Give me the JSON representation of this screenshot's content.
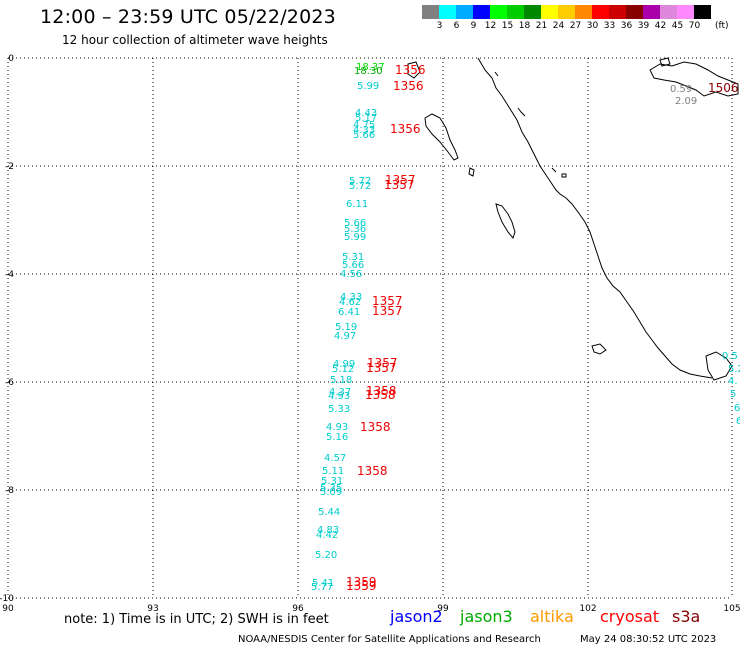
{
  "header": {
    "title": "12:00 – 23:59 UTC 05/22/2023",
    "subtitle": "12 hour collection of altimeter wave heights"
  },
  "color_scale": {
    "colors": [
      "#808080",
      "#00ffff",
      "#00aaff",
      "#0000ff",
      "#00ff00",
      "#00cc00",
      "#008800",
      "#ffff00",
      "#ffcc00",
      "#ff8800",
      "#ff0000",
      "#cc0000",
      "#880000",
      "#aa00aa",
      "#dd88dd",
      "#ff88ff",
      "#000000"
    ],
    "labels": [
      "3",
      "6",
      "9",
      "12",
      "15",
      "18",
      "21",
      "24",
      "27",
      "30",
      "33",
      "36",
      "39",
      "42",
      "45",
      "70"
    ],
    "unit": "(ft)"
  },
  "axes": {
    "lat_labels": [
      "0",
      "-2",
      "-4",
      "-6",
      "-8",
      "-10"
    ],
    "lon_labels": [
      "90",
      "93",
      "96",
      "99",
      "102",
      "105"
    ]
  },
  "observations": {
    "heights": [
      {
        "text": "18.37",
        "color": "#00dd00"
      },
      {
        "text": "18.30",
        "color": "#00aa00"
      },
      {
        "text": "5.99",
        "color": "#00cccc"
      },
      {
        "text": "4.43",
        "color": "#00cccc"
      },
      {
        "text": "5.17",
        "color": "#00cccc"
      },
      {
        "text": "4.75",
        "color": "#00cccc"
      },
      {
        "text": "4.33",
        "color": "#00cccc"
      },
      {
        "text": "5.66",
        "color": "#00cccc"
      },
      {
        "text": "5.72",
        "color": "#00cccc"
      },
      {
        "text": "5.72",
        "color": "#00cccc"
      },
      {
        "text": "6.11",
        "color": "#00cccc"
      },
      {
        "text": "5.66",
        "color": "#00cccc"
      },
      {
        "text": "5.36",
        "color": "#00cccc"
      },
      {
        "text": "5.99",
        "color": "#00cccc"
      },
      {
        "text": "5.31",
        "color": "#00cccc"
      },
      {
        "text": "5.66",
        "color": "#00cccc"
      },
      {
        "text": "4.56",
        "color": "#00cccc"
      },
      {
        "text": "4.33",
        "color": "#00cccc"
      },
      {
        "text": "4.62",
        "color": "#00cccc"
      },
      {
        "text": "6.41",
        "color": "#00cccc"
      },
      {
        "text": "5.19",
        "color": "#00cccc"
      },
      {
        "text": "4.97",
        "color": "#00cccc"
      },
      {
        "text": "4.99",
        "color": "#00cccc"
      },
      {
        "text": "5.12",
        "color": "#00cccc"
      },
      {
        "text": "5.18",
        "color": "#00cccc"
      },
      {
        "text": "4.37",
        "color": "#00cccc"
      },
      {
        "text": "4.93",
        "color": "#00cccc"
      },
      {
        "text": "5.33",
        "color": "#00cccc"
      },
      {
        "text": "4.93",
        "color": "#00cccc"
      },
      {
        "text": "5.16",
        "color": "#00cccc"
      },
      {
        "text": "4.57",
        "color": "#00cccc"
      },
      {
        "text": "5.11",
        "color": "#00cccc"
      },
      {
        "text": "5.31",
        "color": "#00cccc"
      },
      {
        "text": "5.35",
        "color": "#00cccc"
      },
      {
        "text": "5.09",
        "color": "#00cccc"
      },
      {
        "text": "5.44",
        "color": "#00cccc"
      },
      {
        "text": "4.83",
        "color": "#00cccc"
      },
      {
        "text": "4.42",
        "color": "#00cccc"
      },
      {
        "text": "5.20",
        "color": "#00cccc"
      },
      {
        "text": "5.41",
        "color": "#00cccc"
      },
      {
        "text": "5.77",
        "color": "#00cccc"
      },
      {
        "text": "0.59",
        "color": "#808080"
      },
      {
        "text": "2.09",
        "color": "#808080"
      },
      {
        "text": "0.5",
        "color": "#00cccc"
      },
      {
        "text": "5.2",
        "color": "#00cccc"
      },
      {
        "text": "4.",
        "color": "#00cccc"
      },
      {
        "text": "5",
        "color": "#00cccc"
      },
      {
        "text": "6",
        "color": "#00cccc"
      },
      {
        "text": "6",
        "color": "#00cccc"
      }
    ],
    "times": [
      {
        "text": "1356",
        "color": "#ee0000"
      },
      {
        "text": "1356",
        "color": "#ee0000"
      },
      {
        "text": "1356",
        "color": "#ee0000"
      },
      {
        "text": "1357",
        "color": "#ee0000"
      },
      {
        "text": "1357",
        "color": "#ee0000"
      },
      {
        "text": "1357",
        "color": "#ee0000"
      },
      {
        "text": "1357",
        "color": "#ee0000"
      },
      {
        "text": "1357",
        "color": "#ee0000"
      },
      {
        "text": "1357",
        "color": "#ee0000"
      },
      {
        "text": "1358",
        "color": "#ee0000"
      },
      {
        "text": "1358",
        "color": "#ee0000"
      },
      {
        "text": "1358",
        "color": "#ee0000"
      },
      {
        "text": "1358",
        "color": "#ee0000"
      },
      {
        "text": "1359",
        "color": "#ee0000"
      },
      {
        "text": "1359",
        "color": "#ee0000"
      },
      {
        "text": "1506",
        "color": "#880000"
      }
    ]
  },
  "footer": {
    "note": "note:  1) Time is in UTC;  2) SWH is in feet",
    "satellites": [
      {
        "name": "jason2",
        "color": "#0000ff"
      },
      {
        "name": "jason3",
        "color": "#00aa00"
      },
      {
        "name": "altika",
        "color": "#ff9900"
      },
      {
        "name": "cryosat",
        "color": "#ff0000"
      },
      {
        "name": "s3a",
        "color": "#880000"
      }
    ],
    "credit": "NOAA/NESDIS Center for Satellite Applications and Research",
    "timestamp": "May 24 08:30:52 UTC 2023"
  }
}
